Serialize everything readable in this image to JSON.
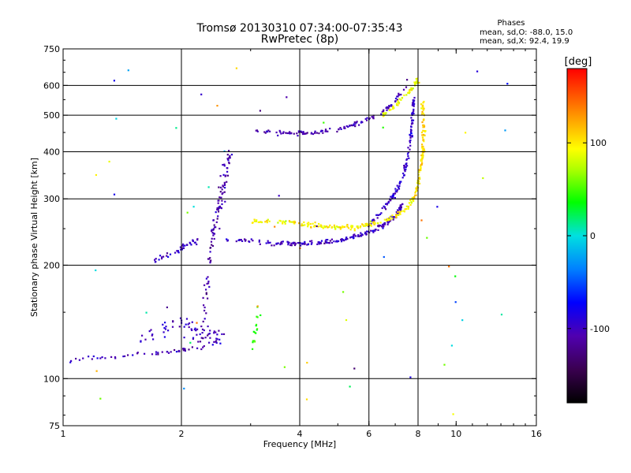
{
  "chart_data": {
    "type": "scatter",
    "title": "Tromsø 20130310 07:34:00-07:35:43",
    "subtitle": "RwPretec (8p)",
    "xlabel": "Frequency [MHz]",
    "ylabel": "Stationary phase Virtual Height [km]",
    "x_scale": "log",
    "y_scale": "log",
    "xlim": [
      1,
      16
    ],
    "ylim": [
      75,
      750
    ],
    "x_ticks": [
      1,
      2,
      4,
      6,
      8,
      10,
      16
    ],
    "x_ticks_labels": [
      "1",
      "2",
      "4",
      "6",
      "8",
      "10",
      "16"
    ],
    "x_gridlines": [
      2,
      4,
      6,
      8
    ],
    "y_ticks": [
      75,
      100,
      200,
      300,
      400,
      500,
      600,
      750
    ],
    "y_ticks_labels": [
      "75",
      "100",
      "200",
      "300",
      "400",
      "500",
      "600",
      "750"
    ],
    "y_gridlines": [
      100,
      200,
      300,
      400,
      500,
      600
    ],
    "grid": true,
    "phases_box": {
      "title": "Phases",
      "line_o": "mean, sd,O: -88.0, 15.0",
      "line_x": "mean, sd,X:  92.4, 19.9"
    },
    "colorbar": {
      "label": "[deg]",
      "range": [
        -180,
        180
      ],
      "ticks": [
        100,
        0,
        -100
      ],
      "tick_labels": [
        "100",
        "0",
        "-100"
      ],
      "colormap": "rainbow (black-purple-blue-cyan-green-yellow-orange-red)"
    },
    "colors": {
      "grid": "#000000",
      "frame": "#000000",
      "background": "#ffffff"
    },
    "traces": [
      {
        "kind": "o-mode low layer",
        "phase_deg": -105,
        "spread": 0.012,
        "n": 50,
        "x": [
          1.0,
          1.1,
          1.2,
          1.4,
          1.55,
          1.7,
          1.85,
          2.0,
          2.15,
          2.3
        ],
        "y": [
          112,
          112,
          114,
          114,
          116,
          117,
          118,
          119,
          120,
          121
        ]
      },
      {
        "kind": "o-mode E blob",
        "phase_deg": -100,
        "spread": 0.05,
        "n": 70,
        "x": [
          1.6,
          1.8,
          2.0,
          2.2,
          2.4,
          2.5
        ],
        "y": [
          130,
          135,
          140,
          135,
          130,
          125
        ]
      },
      {
        "kind": "o-mode spread column",
        "phase_deg": -110,
        "spread": 0.03,
        "n": 110,
        "x": [
          2.25,
          2.3,
          2.35,
          2.4,
          2.45,
          2.5,
          2.55,
          2.6,
          2.65
        ],
        "y": [
          125,
          160,
          200,
          230,
          260,
          290,
          320,
          360,
          400
        ]
      },
      {
        "kind": "o-mode F1 left",
        "phase_deg": -100,
        "spread": 0.025,
        "n": 40,
        "x": [
          1.7,
          1.8,
          1.9,
          2.0,
          2.1,
          2.2
        ],
        "y": [
          205,
          210,
          215,
          222,
          228,
          232
        ]
      },
      {
        "kind": "o-mode F trace",
        "phase_deg": -100,
        "spread": 0.012,
        "n": 200,
        "x": [
          2.6,
          3.0,
          3.5,
          4.0,
          4.5,
          5.0,
          5.5,
          6.0,
          6.5,
          7.0,
          7.3
        ],
        "y": [
          235,
          232,
          228,
          228,
          230,
          232,
          238,
          245,
          255,
          270,
          290
        ]
      },
      {
        "kind": "o-mode F cusp",
        "phase_deg": -95,
        "spread": 0.012,
        "n": 140,
        "x": [
          6.0,
          6.5,
          7.0,
          7.3,
          7.5,
          7.65,
          7.75,
          7.8
        ],
        "y": [
          255,
          280,
          310,
          340,
          380,
          430,
          500,
          560
        ]
      },
      {
        "kind": "o-mode upper trace",
        "phase_deg": -105,
        "spread": 0.012,
        "n": 120,
        "x": [
          3.0,
          3.5,
          4.0,
          4.5,
          5.0,
          5.5,
          6.0,
          6.5,
          7.0,
          7.5
        ],
        "y": [
          455,
          450,
          448,
          452,
          460,
          472,
          490,
          510,
          545,
          600
        ]
      },
      {
        "kind": "x-mode trace",
        "phase_deg": 95,
        "spread": 0.014,
        "n": 170,
        "x": [
          3.0,
          3.5,
          4.0,
          4.5,
          5.0,
          5.5,
          6.0,
          6.5,
          7.0,
          7.5,
          7.8
        ],
        "y": [
          262,
          262,
          258,
          254,
          252,
          252,
          256,
          262,
          270,
          282,
          300
        ]
      },
      {
        "kind": "x-mode cusp",
        "phase_deg": 105,
        "spread": 0.014,
        "n": 110,
        "x": [
          7.8,
          8.0,
          8.1,
          8.2,
          8.25,
          8.3,
          8.25,
          8.2
        ],
        "y": [
          300,
          330,
          360,
          390,
          420,
          460,
          500,
          540
        ]
      },
      {
        "kind": "x-mode upper",
        "phase_deg": 90,
        "spread": 0.014,
        "n": 60,
        "x": [
          6.5,
          7.0,
          7.5,
          7.8,
          8.0
        ],
        "y": [
          500,
          530,
          570,
          600,
          620
        ]
      },
      {
        "kind": "mixed blob 3 MHz",
        "phase_deg": 40,
        "spread": 0.02,
        "n": 16,
        "x": [
          3.05,
          3.1,
          3.15
        ],
        "y": [
          120,
          140,
          155
        ]
      }
    ],
    "noise": {
      "n": 60,
      "xlim": [
        1.2,
        14.5
      ],
      "ylim": [
        80,
        700
      ]
    }
  }
}
